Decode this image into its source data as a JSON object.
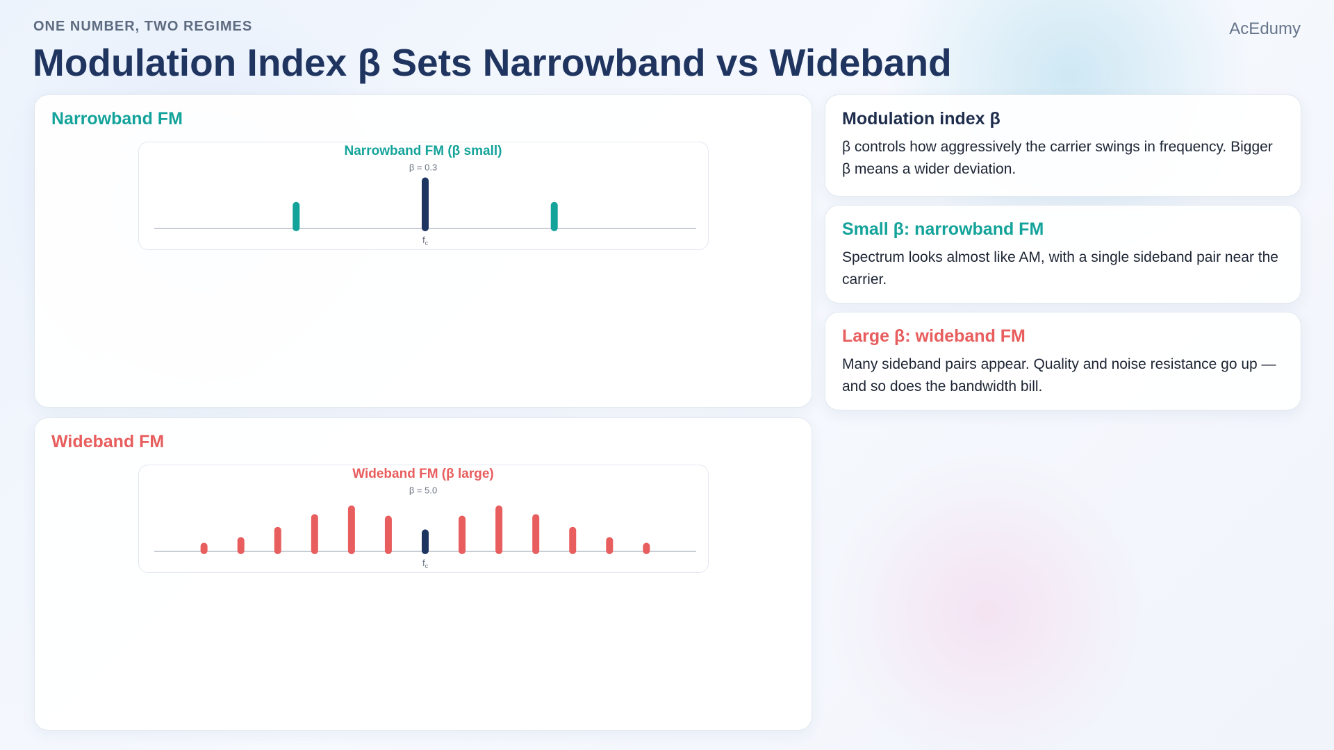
{
  "header": {
    "eyebrow": "ONE NUMBER, TWO REGIMES",
    "title": "Modulation Index β Sets Narrowband vs Wideband",
    "brand": "AcEdumy"
  },
  "panels": [
    {
      "heading": "Narrowband FM"
    },
    {
      "heading": "Wideband FM"
    }
  ],
  "chart_data": [
    {
      "type": "bar",
      "title": "Narrowband FM (β small)",
      "subtitle": "β = 0.3",
      "title_color": "#14a39a",
      "x": [
        -1,
        0,
        1
      ],
      "values": [
        0.52,
        1.0,
        0.52
      ],
      "colors": [
        "#14a39a",
        "#1e3461",
        "#14a39a"
      ],
      "xlim": [
        -2.1,
        2.1
      ],
      "xticks": [
        {
          "value": 0,
          "label": "f"
        }
      ],
      "xtick_subscript": "c"
    },
    {
      "type": "bar",
      "title": "Wideband FM (β large)",
      "subtitle": "β = 5.0",
      "title_color": "#e85d5d",
      "x": [
        -6,
        -5,
        -4,
        -3,
        -2,
        -1,
        0,
        1,
        2,
        3,
        4,
        5,
        6
      ],
      "values": [
        0.17,
        0.28,
        0.48,
        0.73,
        0.9,
        0.7,
        0.43,
        0.7,
        0.9,
        0.73,
        0.48,
        0.28,
        0.17
      ],
      "colors": [
        "#e85d5d",
        "#e85d5d",
        "#e85d5d",
        "#e85d5d",
        "#e85d5d",
        "#e85d5d",
        "#1e3461",
        "#e85d5d",
        "#e85d5d",
        "#e85d5d",
        "#e85d5d",
        "#e85d5d",
        "#e85d5d"
      ],
      "xlim": [
        -7.35,
        7.35
      ],
      "xticks": [
        {
          "value": 0,
          "label": "f"
        }
      ],
      "xtick_subscript": "c"
    }
  ],
  "cards": [
    {
      "title": "Modulation index β",
      "body": "β controls how aggressively the carrier swings in frequency. Bigger β means a wider deviation."
    },
    {
      "title": "Small β: narrowband FM",
      "body": "Spectrum looks almost like AM, with a single sideband pair near the carrier."
    },
    {
      "title": "Large β: wideband FM",
      "body": "Many sideband pairs appear. Quality and noise resistance go up — and so does the bandwidth bill."
    }
  ]
}
